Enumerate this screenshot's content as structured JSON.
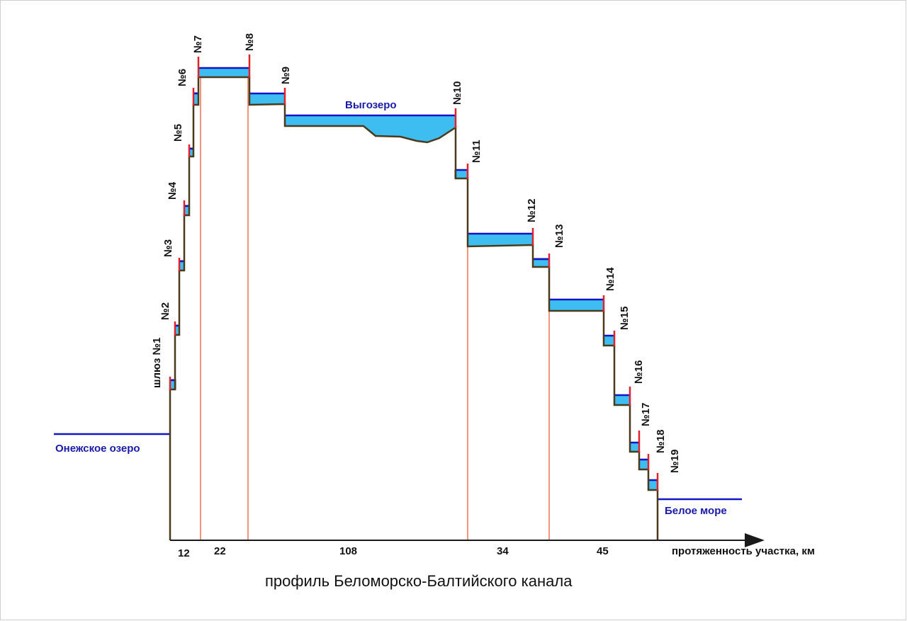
{
  "title": "профиль Беломорско-Балтийского канала",
  "axis_label": "протяженность участка, км",
  "water_bodies": {
    "onega": "Онежское озеро",
    "vygozero": "Выгозеро",
    "white_sea": "Белое море"
  },
  "locks": [
    "шлюз №1",
    "№2",
    "№3",
    "№4",
    "№5",
    "№6",
    "№7",
    "№8",
    "№9",
    "№10",
    "№11",
    "№12",
    "№13",
    "№14",
    "№15",
    "№16",
    "№17",
    "№18",
    "№19"
  ],
  "section_lengths_km": [
    "12",
    "22",
    "108",
    "34",
    "45"
  ],
  "colors": {
    "water_fill": "#3dbdf0",
    "water_surface": "#1414c8",
    "lock_gate": "#e0202a",
    "section_divider": "#f07050",
    "bed_line": "#4a3a1a",
    "axis": "#1a1a1a"
  }
}
